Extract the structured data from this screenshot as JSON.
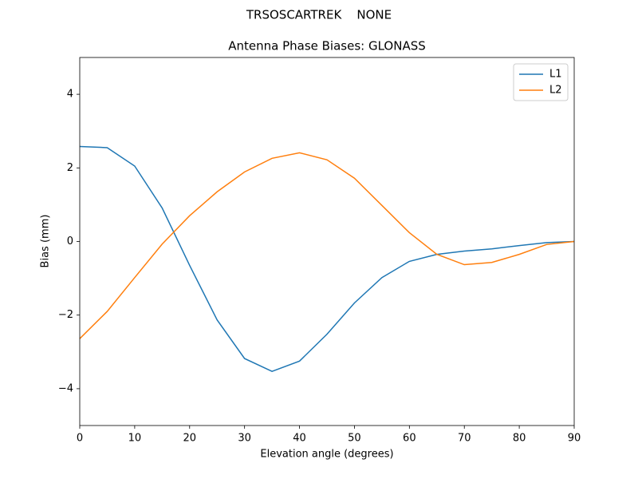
{
  "chart_data": {
    "type": "line",
    "suptitle": "TRSOSCARTREK    NONE",
    "title": "Antenna Phase Biases: GLONASS",
    "x_label": "Elevation angle (degrees)",
    "y_label": "Bias (mm)",
    "x": [
      0,
      5,
      10,
      15,
      20,
      25,
      30,
      35,
      40,
      45,
      50,
      55,
      60,
      65,
      70,
      75,
      80,
      85,
      90
    ],
    "series": [
      {
        "name": "L1",
        "color": "#1f77b4",
        "values": [
          2.58,
          2.55,
          2.05,
          0.91,
          -0.65,
          -2.13,
          -3.18,
          -3.53,
          -3.25,
          -2.52,
          -1.67,
          -0.98,
          -0.54,
          -0.35,
          -0.26,
          -0.2,
          -0.11,
          -0.03,
          0
        ]
      },
      {
        "name": "L2",
        "color": "#ff7f0e",
        "values": [
          -2.64,
          -1.9,
          -0.98,
          -0.07,
          0.7,
          1.35,
          1.89,
          2.26,
          2.41,
          2.22,
          1.72,
          0.98,
          0.24,
          -0.35,
          -0.63,
          -0.57,
          -0.35,
          -0.08,
          0
        ]
      }
    ],
    "xlim": [
      0,
      90
    ],
    "xticks": [
      0,
      10,
      20,
      30,
      40,
      50,
      60,
      70,
      80,
      90
    ],
    "ylim": [
      -5,
      5
    ],
    "yticks": [
      {
        "value": -4,
        "label": "−4"
      },
      {
        "value": -2,
        "label": "−2"
      },
      0,
      2,
      4
    ],
    "grid": false,
    "legend": "upper right"
  }
}
